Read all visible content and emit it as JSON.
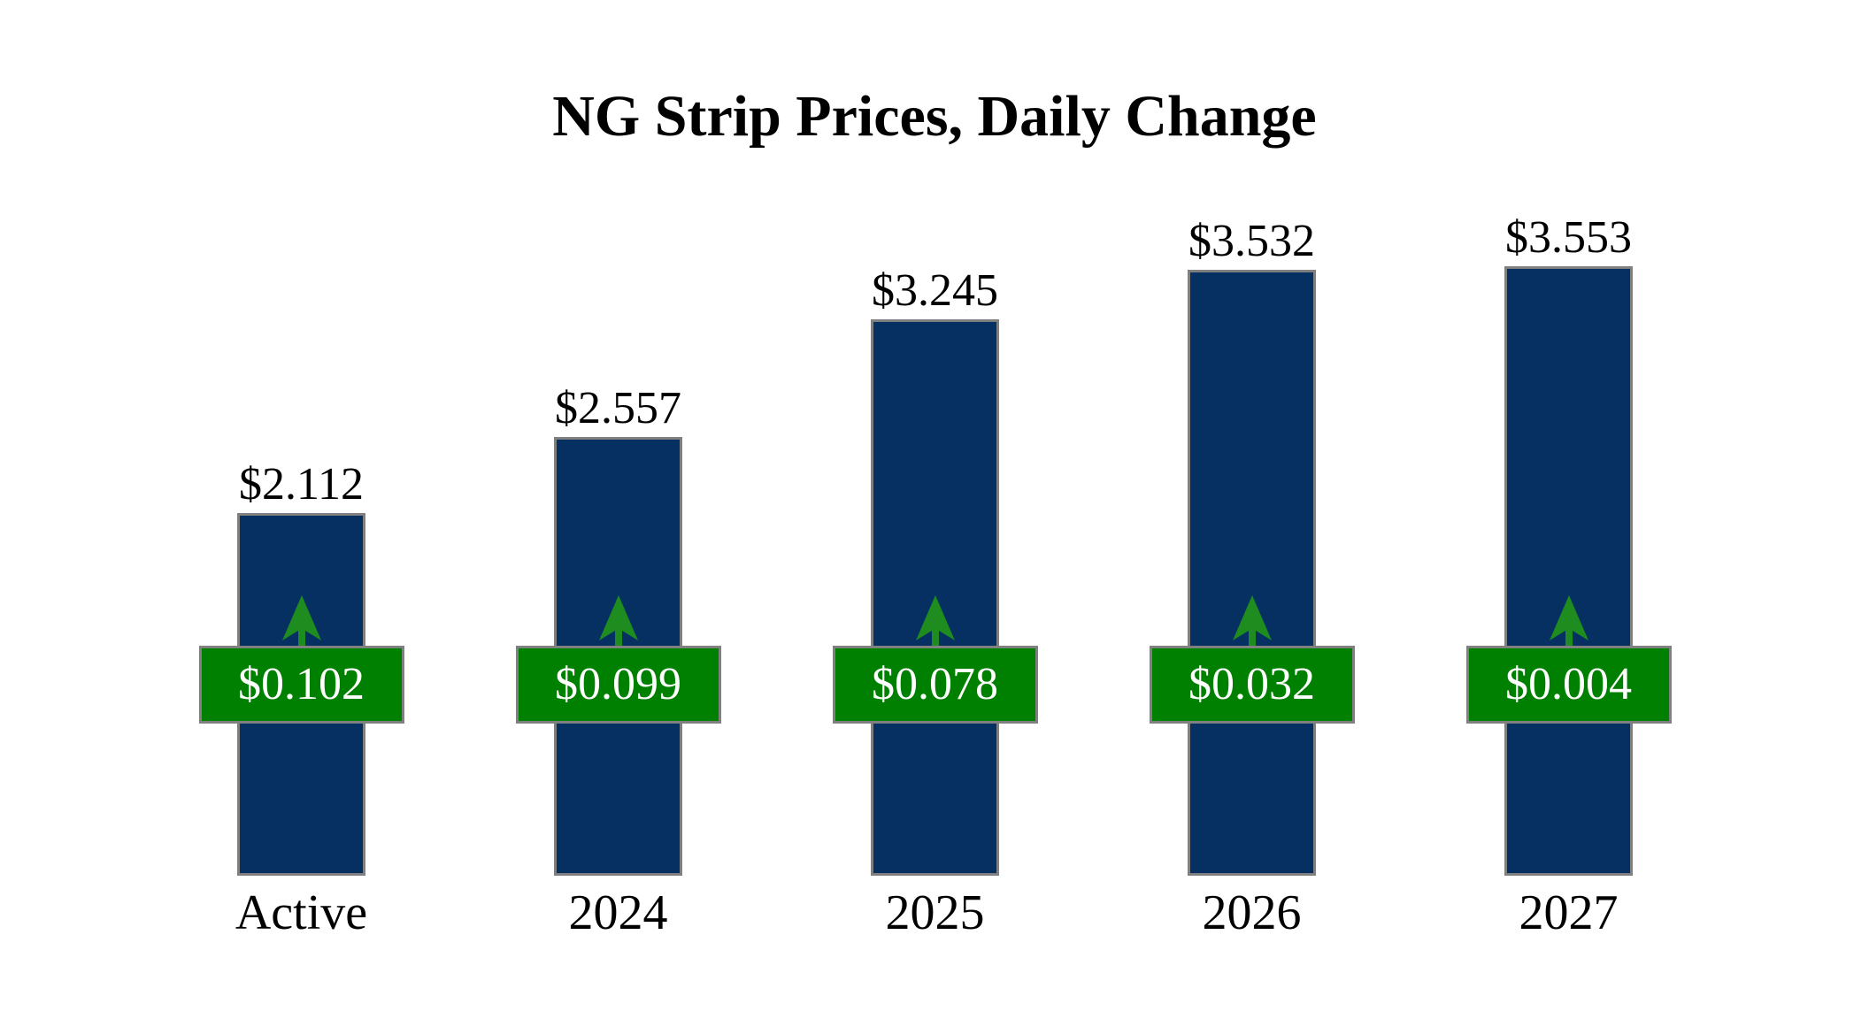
{
  "page": {
    "background": "#FFFFFF"
  },
  "chart_data": {
    "type": "bar",
    "title": "NG Strip Prices, Daily Change",
    "categories": [
      "Active",
      "2024",
      "2025",
      "2026",
      "2027"
    ],
    "series": [
      {
        "name": "Strip Price",
        "values": [
          2.112,
          2.557,
          3.245,
          3.532,
          3.553
        ]
      },
      {
        "name": "Daily Change",
        "values": [
          0.102,
          0.099,
          0.078,
          0.032,
          0.004
        ]
      }
    ],
    "value_labels": [
      "$2.112",
      "$2.557",
      "$3.245",
      "$3.532",
      "$3.553"
    ],
    "change_labels": [
      "$0.102",
      "$0.099",
      "$0.078",
      "$0.032",
      "$0.004"
    ],
    "change_direction": "up",
    "icons": {
      "change": "up-arrow"
    },
    "ylim": [
      0,
      3.553
    ],
    "grid": false,
    "legend": "none",
    "colors": {
      "bar": "#053061",
      "badge": "#008000",
      "arrow": "#1E8C1E",
      "border": "#808080",
      "text": "#000000",
      "badge_text": "#FFFFFF",
      "background": "#FFFFFF"
    }
  }
}
